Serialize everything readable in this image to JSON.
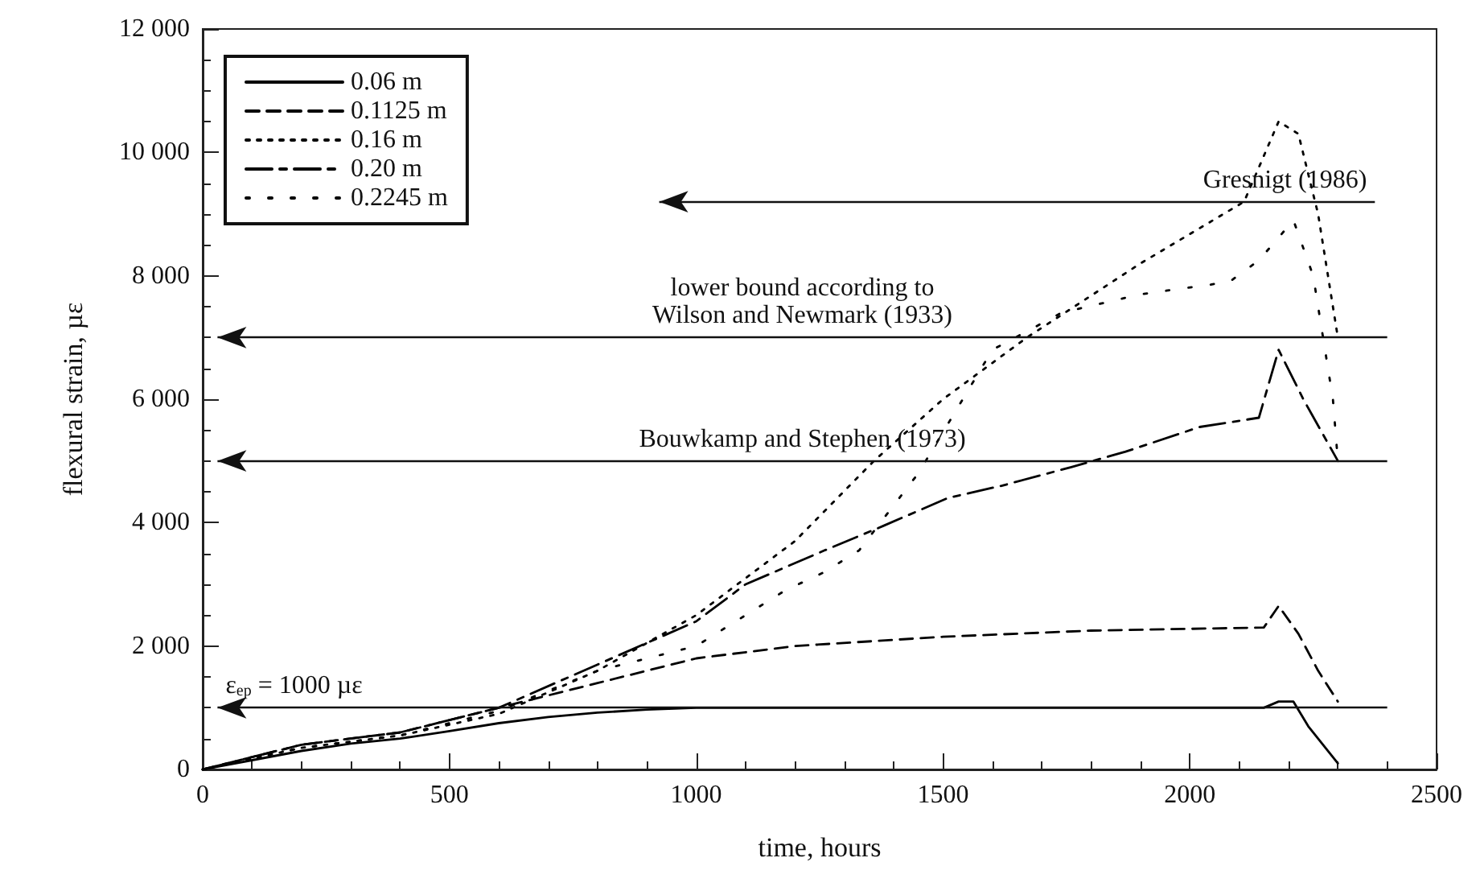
{
  "chart_data": {
    "type": "line",
    "xlabel": "time, hours",
    "ylabel": "flexural strain, µε",
    "xlim": [
      0,
      2500
    ],
    "xticks": [
      0,
      500,
      1000,
      1500,
      2000,
      2500
    ],
    "ylim": [
      0,
      12000
    ],
    "yticks": [
      {
        "value": 0,
        "label": "0"
      },
      {
        "value": 2000,
        "label": "2 000"
      },
      {
        "value": 4000,
        "label": "4 000"
      },
      {
        "value": 6000,
        "label": "6 000"
      },
      {
        "value": 8000,
        "label": "8 000"
      },
      {
        "value": 10000,
        "label": "10 000"
      },
      {
        "value": 12000,
        "label": "12 000"
      }
    ],
    "grid": false,
    "legend": "top left",
    "marker": "none",
    "ref_lines": [
      {
        "axis": "y",
        "value": 9200,
        "label": "Gresnigt (1986)"
      },
      {
        "axis": "y",
        "value": 7000,
        "label": "lower bound according to\nWilson and Newmark (1933)"
      },
      {
        "axis": "y",
        "value": 5000,
        "label": "Bouwkamp and Stephen (1973)"
      },
      {
        "axis": "y",
        "value": 1000,
        "label": "ε$_{ep}$ = 1000 µε"
      }
    ],
    "series": [
      {
        "name": "0.06 m",
        "color": "#000000",
        "line_style": "solid",
        "x": [
          0,
          100,
          200,
          300,
          400,
          500,
          600,
          700,
          800,
          900,
          1000,
          1500,
          2150,
          2180,
          2210,
          2240,
          2300
        ],
        "values": [
          0,
          150,
          300,
          420,
          500,
          620,
          750,
          850,
          920,
          970,
          1000,
          1000,
          1000,
          1100,
          1100,
          700,
          100
        ]
      },
      {
        "name": "0.1125 m",
        "color": "#000000",
        "line_style": "dashed",
        "x": [
          0,
          200,
          400,
          600,
          700,
          800,
          900,
          1000,
          1200,
          1500,
          1800,
          2150,
          2180,
          2220,
          2260,
          2300
        ],
        "values": [
          0,
          400,
          600,
          1000,
          1200,
          1400,
          1600,
          1800,
          2000,
          2150,
          2250,
          2300,
          2650,
          2200,
          1600,
          1100
        ]
      },
      {
        "name": "0.16 m",
        "color": "#000000",
        "line_style": "dotted",
        "x": [
          0,
          200,
          400,
          600,
          800,
          1000,
          1200,
          1360,
          1500,
          1670,
          1900,
          2110,
          2180,
          2220,
          2260,
          2300
        ],
        "values": [
          0,
          350,
          550,
          900,
          1600,
          2500,
          3700,
          5000,
          6000,
          7000,
          8200,
          9200,
          10500,
          10300,
          9000,
          7000
        ]
      },
      {
        "name": "0.20 m",
        "color": "#000000",
        "line_style": "dashed",
        "x": [
          0,
          200,
          400,
          600,
          800,
          1000,
          1100,
          1260,
          1380,
          1510,
          1620,
          1760,
          1870,
          2020,
          2140,
          2180,
          2230,
          2300
        ],
        "values": [
          0,
          400,
          600,
          1000,
          1700,
          2400,
          3000,
          3550,
          3950,
          4400,
          4600,
          4900,
          5150,
          5550,
          5700,
          6800,
          6000,
          5000
        ]
      },
      {
        "name": "0.2245 m",
        "color": "#000000",
        "line_style": "dotted",
        "x": [
          0,
          200,
          400,
          600,
          800,
          1000,
          1100,
          1180,
          1260,
          1330,
          1450,
          1600,
          1740,
          1900,
          2080,
          2140,
          2210,
          2250,
          2290,
          2300
        ],
        "values": [
          0,
          350,
          550,
          950,
          1600,
          2000,
          2500,
          2900,
          3200,
          3550,
          4800,
          6800,
          7400,
          7700,
          7900,
          8250,
          8900,
          8000,
          6000,
          5000
        ]
      }
    ]
  }
}
